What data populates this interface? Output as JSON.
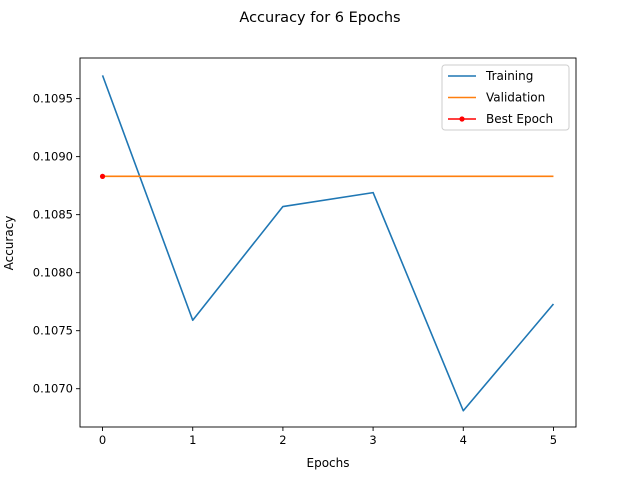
{
  "chart_data": {
    "type": "line",
    "title": "Accuracy for 6 Epochs",
    "xlabel": "Epochs",
    "ylabel": "Accuracy",
    "x": [
      0,
      1,
      2,
      3,
      4,
      5
    ],
    "xticks": [
      "0",
      "1",
      "2",
      "3",
      "4",
      "5"
    ],
    "yticks": [
      "0.1070",
      "0.1075",
      "0.1080",
      "0.1085",
      "0.1090",
      "0.1095"
    ],
    "ytick_values": [
      0.107,
      0.1075,
      0.108,
      0.1085,
      0.109,
      0.1095
    ],
    "xlim": [
      -0.25,
      5.25
    ],
    "ylim": [
      0.10667,
      0.10985
    ],
    "grid": false,
    "legend_position": "top-right",
    "series": [
      {
        "name": "Training",
        "color": "#1f77b4",
        "marker": "none",
        "values": [
          0.1097,
          0.10759,
          0.10857,
          0.10869,
          0.10681,
          0.10773
        ]
      },
      {
        "name": "Validation",
        "color": "#ff7f0e",
        "marker": "none",
        "values": [
          0.10883,
          0.10883,
          0.10883,
          0.10883,
          0.10883,
          0.10883
        ]
      },
      {
        "name": "Best Epoch",
        "color": "#ff0000",
        "marker": "circle",
        "points": [
          [
            0,
            0.10883
          ]
        ]
      }
    ]
  }
}
